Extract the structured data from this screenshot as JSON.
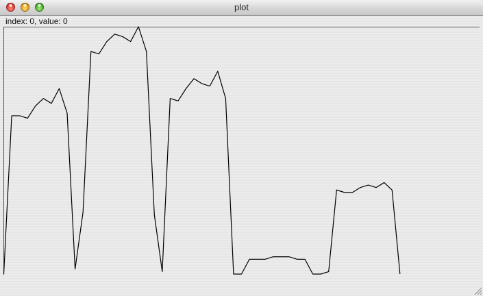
{
  "window": {
    "title": "plot",
    "controls": {
      "close": "close-icon",
      "minimize": "minimize-icon",
      "zoom": "zoom-icon"
    }
  },
  "status": {
    "text": "index: 0, value: 0"
  },
  "chart_data": {
    "type": "line",
    "grid": false,
    "legend": "none",
    "xlim": [
      0,
      60
    ],
    "ylim": [
      0,
      100
    ],
    "line_color": "#000000",
    "series": [
      {
        "values": [
          0,
          64,
          64,
          63,
          68,
          71,
          69,
          75,
          65,
          2,
          25,
          90,
          89,
          94,
          97,
          96,
          94,
          100,
          90,
          24,
          1,
          71,
          70,
          75,
          79,
          77,
          76,
          82,
          71,
          0,
          0,
          6,
          6,
          6,
          7,
          7,
          7,
          6,
          6,
          0,
          0,
          1,
          34,
          33,
          33,
          35,
          36,
          35,
          37,
          34,
          0
        ]
      }
    ]
  }
}
